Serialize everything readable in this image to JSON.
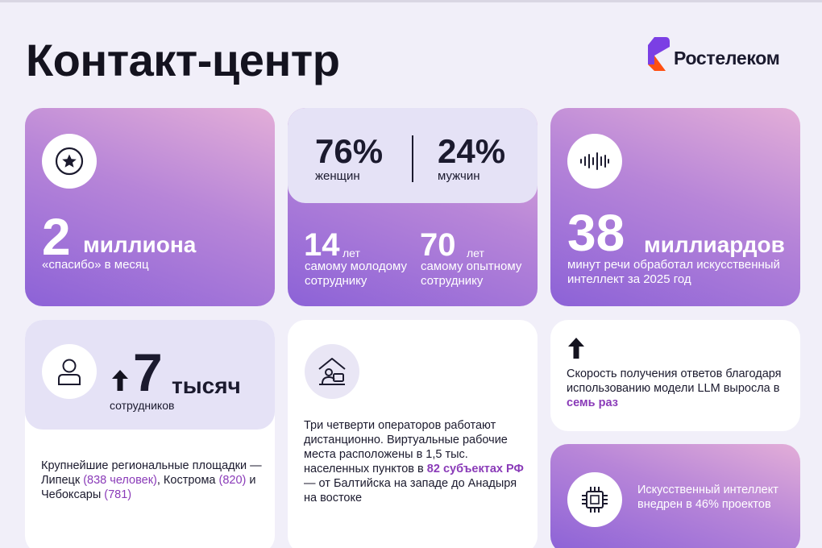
{
  "page": {
    "title": "Контакт-центр"
  },
  "logo": {
    "text": "Ростелеком",
    "colors": [
      "#7b3fe4",
      "#ff4f12"
    ]
  },
  "card_thanks": {
    "icon": "star-icon",
    "number": "2",
    "unit": "миллиона",
    "caption": "«спасибо» в месяц"
  },
  "card_gender": {
    "women_pct": "76%",
    "women_label": "женщин",
    "men_pct": "24%",
    "men_label": "мужчин",
    "youngest_age": "14",
    "youngest_unit": "лет",
    "youngest_label": "самому молодому сотруднику",
    "oldest_age": "70",
    "oldest_unit": "лет",
    "oldest_label": "самому опытному сотруднику"
  },
  "card_speech": {
    "icon": "sound-wave-icon",
    "number": "38",
    "unit": "миллиардов",
    "caption": "минут речи обработал искусственный интеллект за 2025 год"
  },
  "card_staff": {
    "icon": "person-icon",
    "arrow_icon": "arrow-up-icon",
    "number": "7",
    "unit": "тысяч",
    "caption": "сотрудников",
    "sites_text_1": "Крупнейшие региональные площадки — Липецк ",
    "sites_hl_1": "(838 человек)",
    "sites_text_2": ", Кострома ",
    "sites_hl_2": "(820)",
    "sites_text_3": " и Чебоксары ",
    "sites_hl_3": "(781)"
  },
  "card_remote": {
    "icon": "home-office-icon",
    "text_1": "Три четверти операторов работают дистанционно. Виртуальные рабочие места расположены в 1,5 тыс. населенных пунктов в ",
    "hl_1": "82 субъектах РФ",
    "text_2": " — от Балтийска на западе до Анадыря на востоке"
  },
  "card_llm": {
    "icon": "arrow-up-icon",
    "text_1": "Скорость получения ответов благодаря использованию модели LLM выросла в ",
    "hl_1": "семь раз"
  },
  "card_ai": {
    "icon": "chip-icon",
    "text": "Искусственный интеллект внедрен в 46% проектов"
  }
}
